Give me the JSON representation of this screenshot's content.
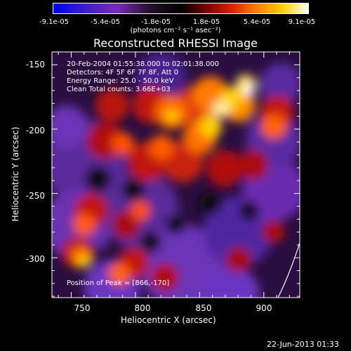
{
  "colorbar": {
    "ticks": [
      "-9.1e-05",
      "-5.4e-05",
      "-1.8e-05",
      "1.8e-05",
      "5.4e-05",
      "9.1e-05"
    ],
    "units": "(photons cm⁻² s⁻¹ asec⁻²)"
  },
  "annotations": {
    "time_range": "20-Feb-2004 01:55:38.000 to 02:01:38.000",
    "detectors": "Detectors: 4F 5F 6F 7F 8F, Att 0",
    "energy": "Energy Range: 25.0 - 50.0 keV",
    "clean": "Clean    Total counts: 3.66E+03",
    "peak": "Position of Peak = [866,-170]"
  },
  "footer_date": "22-Jun-2013 01:33",
  "chart_data": {
    "type": "heatmap",
    "title": "Reconstructed RHESSI Image",
    "xlabel": "Heliocentric X (arcsec)",
    "ylabel": "Heliocentric Y (arcsec)",
    "xlim": [
      735,
      928
    ],
    "ylim": [
      -331,
      -140
    ],
    "xticks": [
      750,
      800,
      850,
      900
    ],
    "yticks": [
      -150,
      -200,
      -250,
      -300
    ],
    "color_range": [
      -9.1e-05,
      9.1e-05
    ],
    "colormap": "blue-purple-black-red-orange-yellow-white",
    "peak": [
      866,
      -170
    ]
  }
}
